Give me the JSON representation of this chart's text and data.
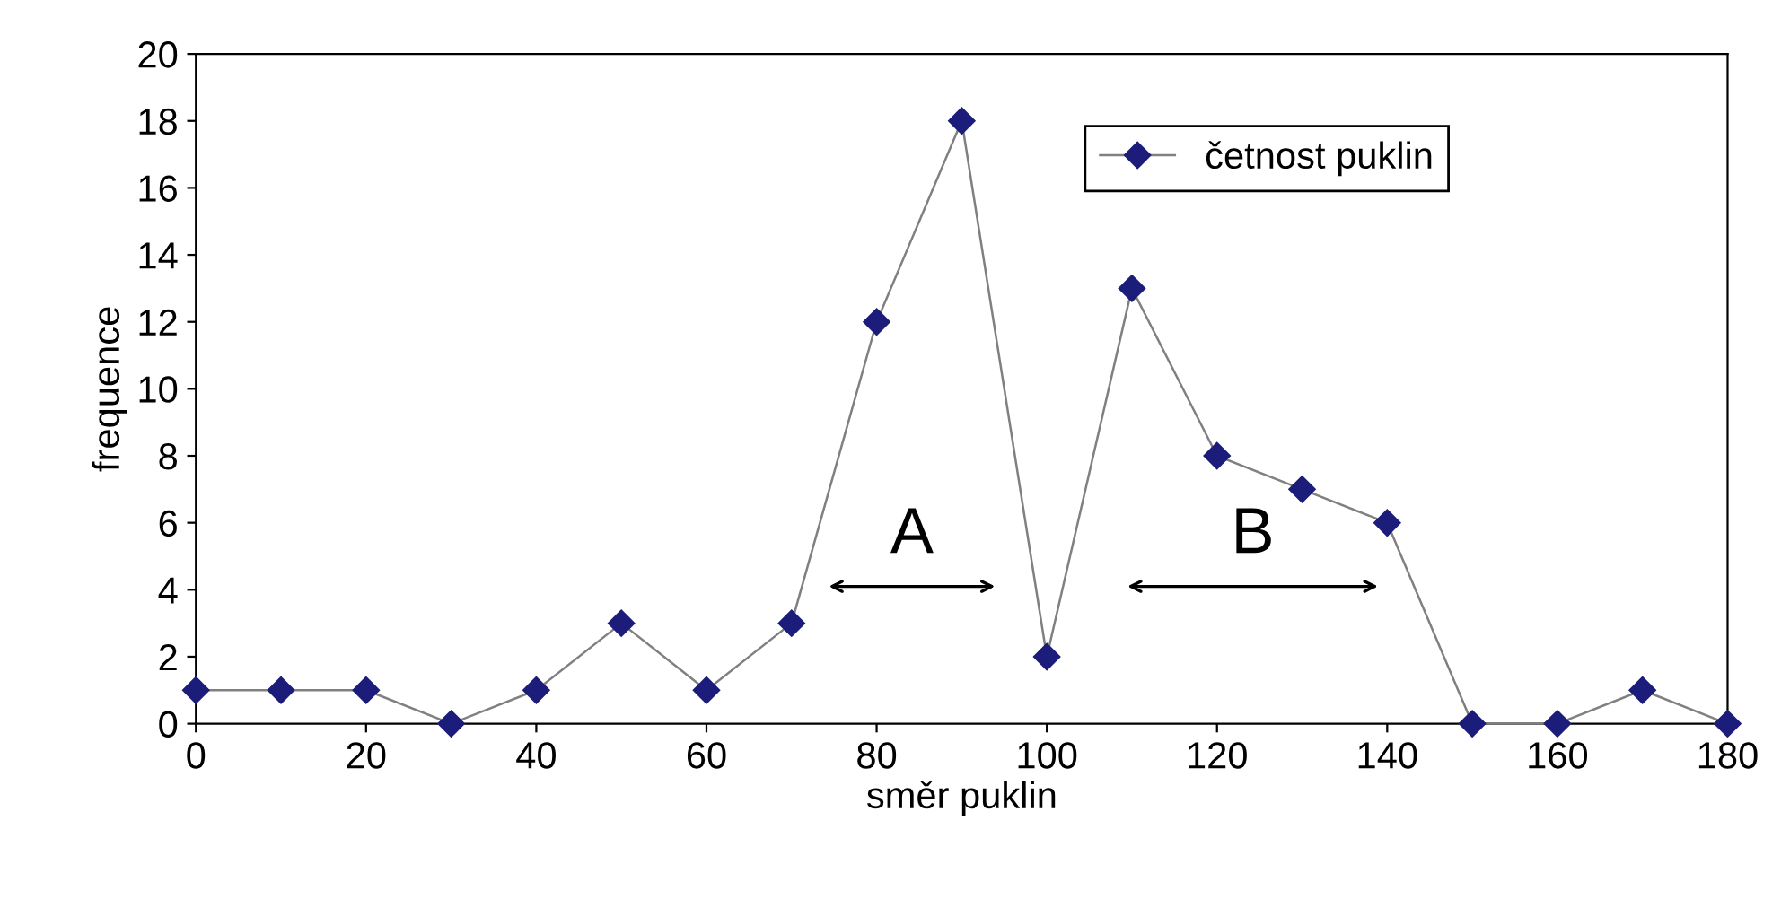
{
  "chart_data": {
    "type": "line",
    "xlabel": "směr puklin",
    "ylabel": "frequence",
    "x": [
      0,
      10,
      20,
      30,
      40,
      50,
      60,
      70,
      80,
      90,
      100,
      110,
      120,
      130,
      140,
      150,
      160,
      170,
      180
    ],
    "series": [
      {
        "name": "četnost puklin",
        "color": "#1c1c7a",
        "values": [
          1,
          1,
          1,
          0,
          1,
          3,
          1,
          3,
          12,
          18,
          2,
          13,
          8,
          7,
          6,
          0,
          0,
          1,
          0
        ]
      }
    ],
    "xlim": [
      0,
      180
    ],
    "xticks": [
      0,
      20,
      40,
      60,
      80,
      100,
      120,
      140,
      160,
      180
    ],
    "ylim": [
      0,
      20
    ],
    "yticks": [
      0,
      2,
      4,
      6,
      8,
      10,
      12,
      14,
      16,
      18,
      20
    ],
    "marker": "diamond",
    "line_style": "solid",
    "grid": false,
    "legend": "top right",
    "annotations": [
      "A",
      "B"
    ]
  }
}
